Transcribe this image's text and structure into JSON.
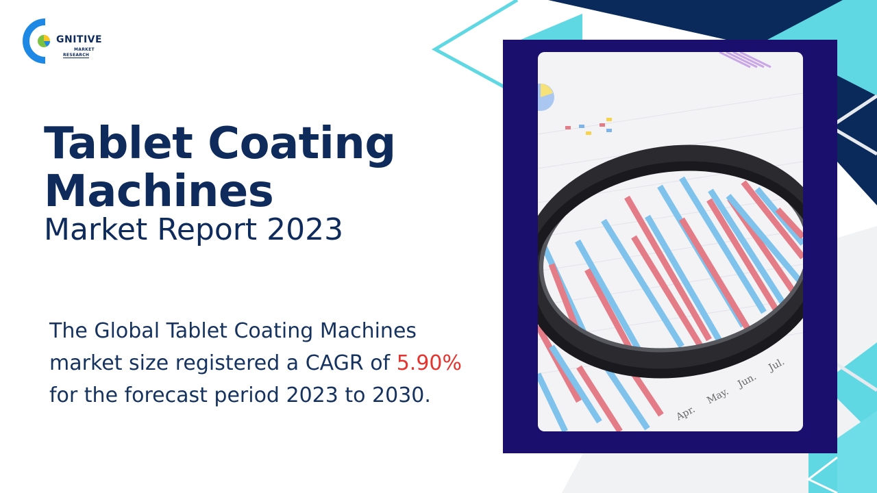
{
  "logo": {
    "brand_main": "GNITIVE",
    "brand_line1": "MARKET",
    "brand_line2": "RESEARCH",
    "colors": {
      "primary": "#0f2b5b",
      "accent": "#1e88e5",
      "green": "#7cc242",
      "yellow": "#f9c623"
    }
  },
  "heading": {
    "line1": "Tablet Coating",
    "line2": "Machines",
    "subtitle": "Market Report 2023"
  },
  "description": {
    "part1": "The Global Tablet Coating Machines market size registered a CAGR of ",
    "highlight": "5.90%",
    "part2": " for the forecast period 2023 to 2030."
  },
  "photo": {
    "month_labels": [
      "Apr.",
      "May.",
      "Jun.",
      "Jul."
    ]
  },
  "colors": {
    "navy": "#0f2b5b",
    "dark_navy": "#0a2a5c",
    "frame": "#1b0f6e",
    "cyan": "#5fd8e3",
    "highlight_red": "#e3342f",
    "orange": "#f2a23a"
  }
}
